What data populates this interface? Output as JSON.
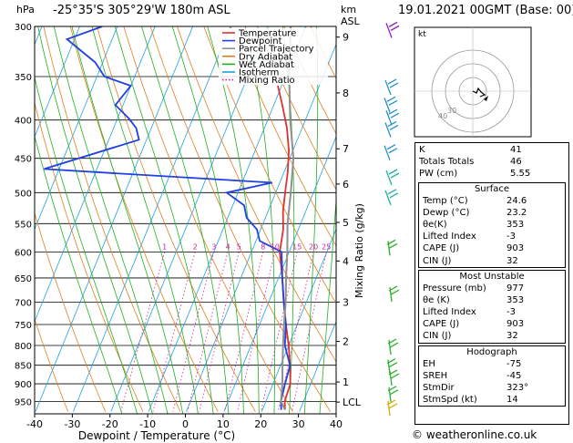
{
  "header": {
    "location": "-25°35'S 305°29'W 180m ASL",
    "datetime": "19.01.2021 00GMT (Base: 00)",
    "hpa_label": "hPa",
    "km_label": "km",
    "asl_label": "ASL",
    "hodo_label": "kt",
    "credit": "© weatheronline.co.uk"
  },
  "chart_data": {
    "type": "line",
    "title": "",
    "xlabel": "Dewpoint / Temperature (°C)",
    "ylabel": "Mixing Ratio (g/kg)",
    "xlim": [
      -40,
      40
    ],
    "ylim": [
      300,
      1000
    ],
    "y_scale": "log",
    "x_ticks": [
      -40,
      -30,
      -20,
      -10,
      0,
      10,
      20,
      30,
      40
    ],
    "pressure_levels": [
      300,
      350,
      400,
      450,
      500,
      550,
      600,
      650,
      700,
      750,
      800,
      850,
      900,
      950
    ],
    "km_ticks": [
      {
        "label": "9",
        "p": 310
      },
      {
        "label": "8",
        "p": 368
      },
      {
        "label": "7",
        "p": 437
      },
      {
        "label": "6",
        "p": 487
      },
      {
        "label": "5",
        "p": 548
      },
      {
        "label": "4",
        "p": 617
      },
      {
        "label": "3",
        "p": 700
      },
      {
        "label": "2",
        "p": 790
      },
      {
        "label": "1",
        "p": 895
      },
      {
        "label": "LCL",
        "p": 952
      }
    ],
    "mixing_ratio_labels": [
      "1",
      "2",
      "3",
      "4",
      "5",
      "8",
      "10",
      "15",
      "20",
      "25"
    ],
    "mixing_ratio_values": [
      1,
      2,
      3,
      4,
      5,
      8,
      10,
      15,
      20,
      25
    ],
    "grid": true,
    "legend_position": "top-right",
    "legend": [
      {
        "name": "Temperature",
        "color": "#e03030"
      },
      {
        "name": "Dewpoint",
        "color": "#2040e0"
      },
      {
        "name": "Parcel Trajectory",
        "color": "#909090"
      },
      {
        "name": "Dry Adiabat",
        "color": "#e08020"
      },
      {
        "name": "Wet Adiabat",
        "color": "#20b020"
      },
      {
        "name": "Isotherm",
        "color": "#20a0e0"
      },
      {
        "name": "Mixing Ratio",
        "color": "#d020a0"
      }
    ],
    "series": [
      {
        "name": "Temperature",
        "color": "#e03030",
        "points": [
          [
            26,
            975
          ],
          [
            25,
            950
          ],
          [
            24.6,
            900
          ],
          [
            22.5,
            850
          ],
          [
            20,
            800
          ],
          [
            17,
            750
          ],
          [
            14,
            700
          ],
          [
            11,
            650
          ],
          [
            7.5,
            600
          ],
          [
            6,
            560
          ],
          [
            4,
            530
          ],
          [
            2.5,
            500
          ],
          [
            1,
            470
          ],
          [
            -1,
            440
          ],
          [
            -4,
            410
          ],
          [
            -8,
            380
          ],
          [
            -11,
            360
          ]
        ]
      },
      {
        "name": "Dewpoint",
        "color": "#2040e0",
        "points": [
          [
            25,
            975
          ],
          [
            24,
            950
          ],
          [
            23.2,
            900
          ],
          [
            22.5,
            850
          ],
          [
            19,
            800
          ],
          [
            17,
            750
          ],
          [
            14,
            700
          ],
          [
            11,
            650
          ],
          [
            8,
            600
          ],
          [
            1,
            580
          ],
          [
            -1,
            560
          ],
          [
            -5,
            540
          ],
          [
            -7,
            520
          ],
          [
            -13,
            500
          ],
          [
            -2,
            485
          ],
          [
            -64,
            465
          ],
          [
            -42,
            425
          ],
          [
            -44,
            410
          ],
          [
            -47,
            398
          ],
          [
            -52,
            382
          ],
          [
            -50,
            360
          ],
          [
            -58,
            350
          ],
          [
            -62,
            335
          ],
          [
            -72,
            312
          ],
          [
            -64,
            300
          ]
        ]
      },
      {
        "name": "Parcel Trajectory",
        "color": "#909090",
        "points": [
          [
            26,
            975
          ],
          [
            24,
            950
          ],
          [
            22.5,
            900
          ],
          [
            20.5,
            850
          ],
          [
            18.5,
            800
          ],
          [
            16.5,
            750
          ],
          [
            14.5,
            700
          ],
          [
            12,
            650
          ],
          [
            9.5,
            600
          ],
          [
            6.5,
            550
          ],
          [
            4,
            500
          ],
          [
            1,
            450
          ],
          [
            -4,
            400
          ],
          [
            -9,
            350
          ],
          [
            -14,
            300
          ]
        ]
      }
    ]
  },
  "hodograph": {
    "circle_labels": [
      "40",
      "30"
    ]
  },
  "indices": {
    "top": [
      {
        "label": "K",
        "value": "41"
      },
      {
        "label": "Totals Totals",
        "value": "46"
      },
      {
        "label": "PW (cm)",
        "value": "5.55"
      }
    ],
    "surface": {
      "title": "Surface",
      "rows": [
        {
          "label": "Temp (°C)",
          "value": "24.6"
        },
        {
          "label": "Dewp (°C)",
          "value": "23.2"
        },
        {
          "label": "θe(K)",
          "value": "353"
        },
        {
          "label": "Lifted Index",
          "value": "-3"
        },
        {
          "label": "CAPE (J)",
          "value": "903"
        },
        {
          "label": "CIN (J)",
          "value": "32"
        }
      ]
    },
    "unstable": {
      "title": "Most Unstable",
      "rows": [
        {
          "label": "Pressure (mb)",
          "value": "977"
        },
        {
          "label": "θe (K)",
          "value": "353"
        },
        {
          "label": "Lifted Index",
          "value": "-3"
        },
        {
          "label": "CAPE (J)",
          "value": "903"
        },
        {
          "label": "CIN (J)",
          "value": "32"
        }
      ]
    },
    "hodo": {
      "title": "Hodograph",
      "rows": [
        {
          "label": "EH",
          "value": "-75"
        },
        {
          "label": "SREH",
          "value": "-45"
        },
        {
          "label": "StmDir",
          "value": "323°"
        },
        {
          "label": "StmSpd (kt)",
          "value": "14"
        }
      ]
    }
  }
}
